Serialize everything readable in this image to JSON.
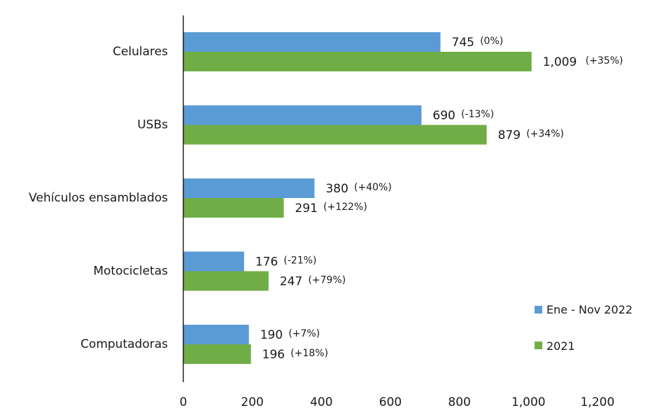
{
  "chart_data": {
    "type": "bar",
    "orientation": "horizontal",
    "categories": [
      "Celulares",
      "USBs",
      "Vehículos ensamblados",
      "Motocicletas",
      "Computadoras"
    ],
    "series": [
      {
        "name": "Ene - Nov 2022",
        "color": "#5b9bd5",
        "values": [
          745,
          690,
          380,
          176,
          190
        ],
        "value_labels": [
          "745",
          "690",
          "380",
          "176",
          "190"
        ],
        "change_labels": [
          "(0%)",
          "(-13%)",
          "(+40%)",
          "(-21%)",
          "(+7%)"
        ]
      },
      {
        "name": "2021",
        "color": "#70ad47",
        "values": [
          1009,
          879,
          291,
          247,
          196
        ],
        "value_labels": [
          "1,009",
          "879",
          "291",
          "247",
          "196"
        ],
        "change_labels": [
          "(+35%)",
          "(+34%)",
          "(+122%)",
          "(+79%)",
          "(+18%)"
        ]
      }
    ],
    "x_ticks": [
      "0",
      "200",
      "400",
      "600",
      "800",
      "1,000",
      "1,200"
    ],
    "xlim": [
      0,
      1200
    ],
    "grid": false,
    "legend_position": "bottom-right"
  }
}
